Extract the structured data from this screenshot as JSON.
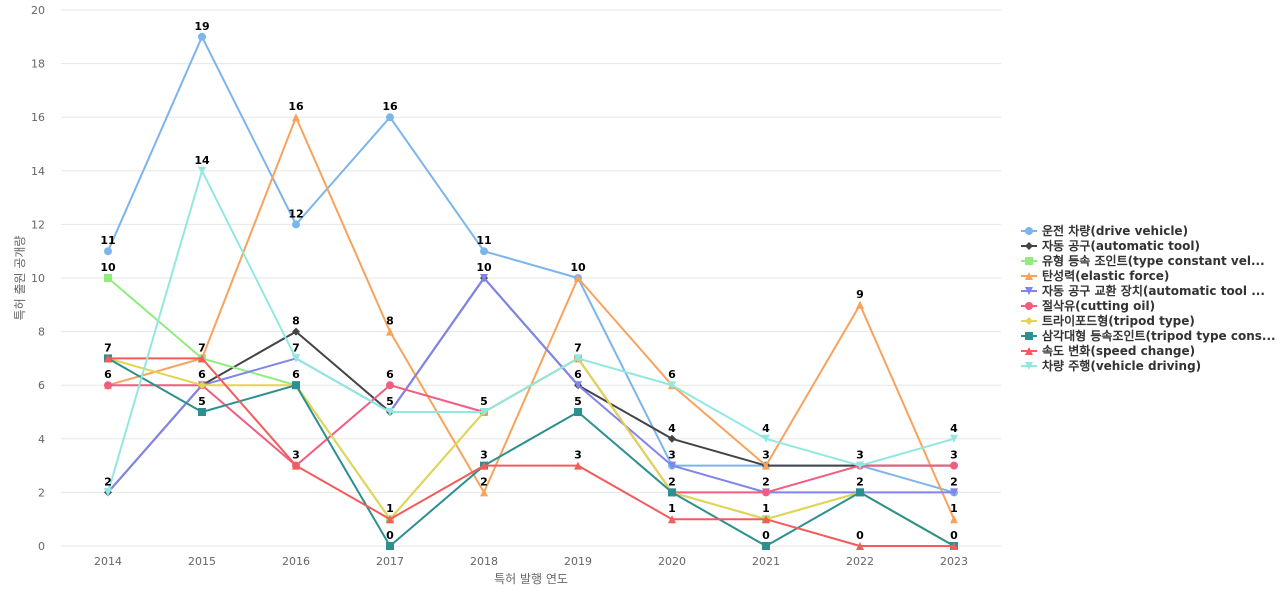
{
  "chart_data": {
    "type": "line",
    "title": "",
    "xlabel": "특허 발행 연도",
    "ylabel": "특허 출원 공개량",
    "x": [
      "2014",
      "2015",
      "2016",
      "2017",
      "2018",
      "2019",
      "2020",
      "2021",
      "2022",
      "2023"
    ],
    "ylim": [
      0,
      20
    ],
    "yticks": [
      0,
      2,
      4,
      6,
      8,
      10,
      12,
      14,
      16,
      18,
      20
    ],
    "grid": true,
    "legend_position": "right",
    "series": [
      {
        "name": "운전 차량(drive vehicle)",
        "color": "#7cb5ec",
        "marker": "circle",
        "values": [
          11,
          19,
          12,
          16,
          11,
          10,
          3,
          3,
          3,
          2
        ]
      },
      {
        "name": "자동 공구(automatic tool)",
        "color": "#434348",
        "marker": "diamond",
        "values": [
          2,
          6,
          8,
          5,
          10,
          6,
          4,
          3,
          3,
          3
        ]
      },
      {
        "name": "유형 등속 조인트(type constant vel...",
        "color": "#90ed7d",
        "marker": "square",
        "values": [
          10,
          7,
          6,
          1,
          5,
          7,
          2,
          1,
          2,
          0
        ]
      },
      {
        "name": "탄성력(elastic force)",
        "color": "#f7a35c",
        "marker": "triangle",
        "values": [
          6,
          7,
          16,
          8,
          2,
          10,
          6,
          3,
          9,
          1
        ]
      },
      {
        "name": "자동 공구 교환 장치(automatic tool ...",
        "color": "#8085e9",
        "marker": "triangle-down",
        "values": [
          2,
          6,
          7,
          5,
          10,
          6,
          3,
          2,
          2,
          2
        ]
      },
      {
        "name": "절삭유(cutting oil)",
        "color": "#f15c80",
        "marker": "circle",
        "values": [
          6,
          6,
          3,
          6,
          5,
          7,
          2,
          2,
          3,
          3
        ]
      },
      {
        "name": "트라이포드형(tripod type)",
        "color": "#e4d354",
        "marker": "diamond",
        "values": [
          7,
          6,
          6,
          1,
          5,
          7,
          2,
          1,
          2,
          0
        ]
      },
      {
        "name": "삼각대형 등속조인트(tripod type cons...",
        "color": "#2b908f",
        "marker": "square",
        "values": [
          7,
          5,
          6,
          0,
          3,
          5,
          2,
          0,
          2,
          0
        ]
      },
      {
        "name": "속도 변화(speed change)",
        "color": "#f45b5b",
        "marker": "triangle",
        "values": [
          7,
          7,
          3,
          1,
          3,
          3,
          1,
          1,
          0,
          0
        ]
      },
      {
        "name": "차량 주행(vehicle driving)",
        "color": "#91e8e1",
        "marker": "triangle-down",
        "values": [
          2,
          14,
          7,
          5,
          5,
          7,
          6,
          4,
          3,
          4
        ]
      }
    ],
    "labels": [
      {
        "x": "2014",
        "y": 11,
        "text": "11"
      },
      {
        "x": "2014",
        "y": 10,
        "text": "10"
      },
      {
        "x": "2014",
        "y": 7,
        "text": "7"
      },
      {
        "x": "2014",
        "y": 6,
        "text": "6"
      },
      {
        "x": "2014",
        "y": 2,
        "text": "2"
      },
      {
        "x": "2015",
        "y": 19,
        "text": "19"
      },
      {
        "x": "2015",
        "y": 14,
        "text": "14"
      },
      {
        "x": "2015",
        "y": 7,
        "text": "7"
      },
      {
        "x": "2015",
        "y": 6,
        "text": "6"
      },
      {
        "x": "2015",
        "y": 5,
        "text": "5"
      },
      {
        "x": "2016",
        "y": 16,
        "text": "16"
      },
      {
        "x": "2016",
        "y": 12,
        "text": "12"
      },
      {
        "x": "2016",
        "y": 8,
        "text": "8"
      },
      {
        "x": "2016",
        "y": 7,
        "text": "7"
      },
      {
        "x": "2016",
        "y": 6,
        "text": "6"
      },
      {
        "x": "2016",
        "y": 3,
        "text": "3"
      },
      {
        "x": "2017",
        "y": 16,
        "text": "16"
      },
      {
        "x": "2017",
        "y": 8,
        "text": "8"
      },
      {
        "x": "2017",
        "y": 6,
        "text": "6"
      },
      {
        "x": "2017",
        "y": 5,
        "text": "5"
      },
      {
        "x": "2017",
        "y": 1,
        "text": "1"
      },
      {
        "x": "2017",
        "y": 0,
        "text": "0"
      },
      {
        "x": "2018",
        "y": 11,
        "text": "11"
      },
      {
        "x": "2018",
        "y": 10,
        "text": "10"
      },
      {
        "x": "2018",
        "y": 5,
        "text": "5"
      },
      {
        "x": "2018",
        "y": 3,
        "text": "3"
      },
      {
        "x": "2018",
        "y": 2,
        "text": "2"
      },
      {
        "x": "2019",
        "y": 10,
        "text": "10"
      },
      {
        "x": "2019",
        "y": 7,
        "text": "7"
      },
      {
        "x": "2019",
        "y": 6,
        "text": "6"
      },
      {
        "x": "2019",
        "y": 5,
        "text": "5"
      },
      {
        "x": "2019",
        "y": 3,
        "text": "3"
      },
      {
        "x": "2020",
        "y": 6,
        "text": "6"
      },
      {
        "x": "2020",
        "y": 4,
        "text": "4"
      },
      {
        "x": "2020",
        "y": 3,
        "text": "3"
      },
      {
        "x": "2020",
        "y": 2,
        "text": "2"
      },
      {
        "x": "2020",
        "y": 1,
        "text": "1"
      },
      {
        "x": "2021",
        "y": 4,
        "text": "4"
      },
      {
        "x": "2021",
        "y": 3,
        "text": "3"
      },
      {
        "x": "2021",
        "y": 2,
        "text": "2"
      },
      {
        "x": "2021",
        "y": 1,
        "text": "1"
      },
      {
        "x": "2021",
        "y": 0,
        "text": "0"
      },
      {
        "x": "2022",
        "y": 9,
        "text": "9"
      },
      {
        "x": "2022",
        "y": 3,
        "text": "3"
      },
      {
        "x": "2022",
        "y": 2,
        "text": "2"
      },
      {
        "x": "2022",
        "y": 0,
        "text": "0"
      },
      {
        "x": "2023",
        "y": 4,
        "text": "4"
      },
      {
        "x": "2023",
        "y": 3,
        "text": "3"
      },
      {
        "x": "2023",
        "y": 2,
        "text": "2"
      },
      {
        "x": "2023",
        "y": 1,
        "text": "1"
      },
      {
        "x": "2023",
        "y": 0,
        "text": "0"
      }
    ]
  }
}
